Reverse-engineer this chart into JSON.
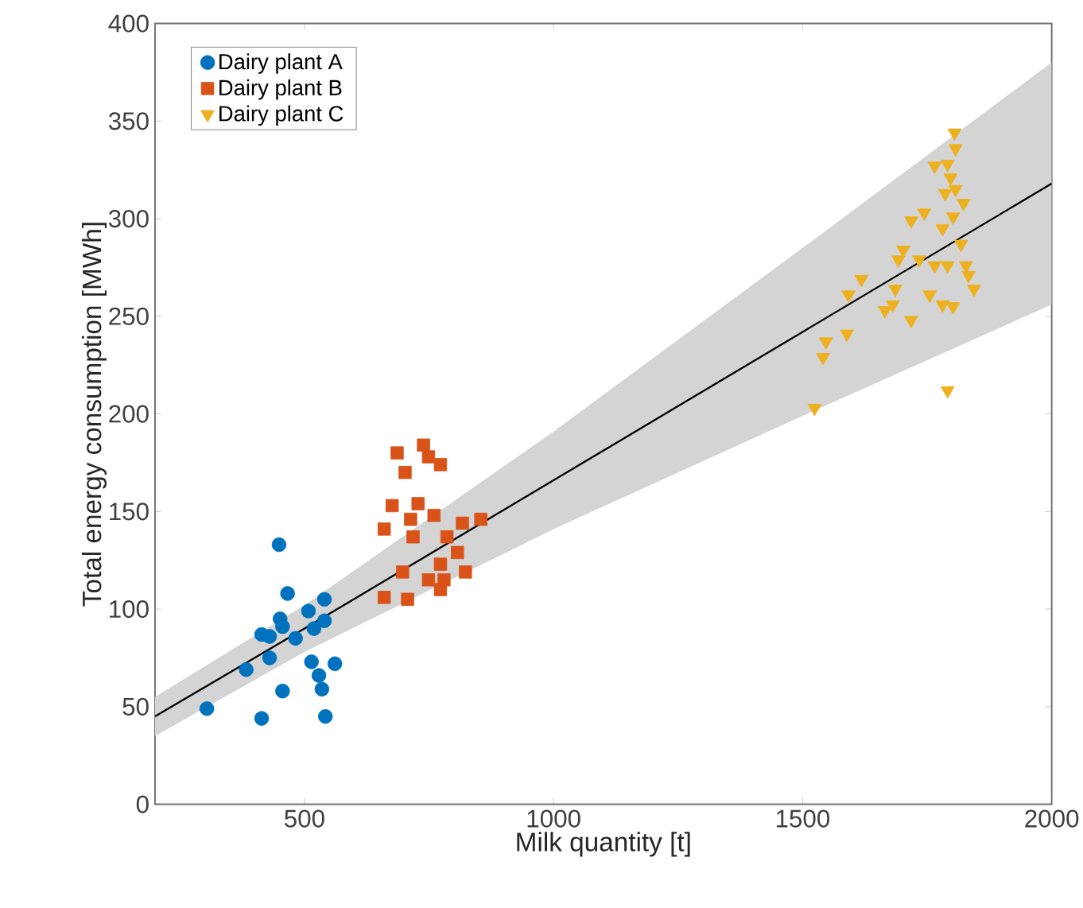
{
  "chart_data": {
    "type": "scatter",
    "xlabel": "Milk quantity [t]",
    "ylabel": "Total energy consumption [MWh]",
    "xlim": [
      200,
      2000
    ],
    "ylim": [
      0,
      400
    ],
    "xticks": [
      500,
      1000,
      1500,
      2000
    ],
    "yticks": [
      0,
      50,
      100,
      150,
      200,
      250,
      300,
      350,
      400
    ],
    "grid": false,
    "legend": "top left",
    "series": [
      {
        "name": "Dairy plant A",
        "color": "#0072bd",
        "marker": "circle",
        "x": [
          449,
          466,
          451,
          414,
          430,
          456,
          508,
          540,
          540,
          482,
          519,
          430,
          383,
          514,
          561,
          529,
          535,
          456,
          304,
          414,
          542
        ],
        "values": [
          133,
          108,
          95,
          87,
          86,
          91,
          99,
          105,
          94,
          85,
          90,
          75,
          69,
          73,
          72,
          66,
          59,
          58,
          49,
          44,
          45
        ]
      },
      {
        "name": "Dairy plant B",
        "color": "#d95319",
        "marker": "square",
        "x": [
          686,
          739,
          749,
          702,
          773,
          676,
          728,
          760,
          713,
          660,
          718,
          854,
          817,
          786,
          807,
          773,
          823,
          697,
          749,
          780,
          660,
          707,
          773
        ],
        "values": [
          180,
          184,
          178,
          170,
          174,
          153,
          154,
          148,
          146,
          141,
          137,
          146,
          144,
          137,
          129,
          123,
          119,
          119,
          115,
          115,
          106,
          105,
          110
        ]
      },
      {
        "name": "Dairy plant C",
        "color": "#edb120",
        "marker": "triangle",
        "x": [
          1805,
          1807,
          1765,
          1791,
          1797,
          1807,
          1786,
          1823,
          1744,
          1718,
          1802,
          1781,
          1818,
          1702,
          1692,
          1734,
          1765,
          1791,
          1828,
          1833,
          1844,
          1618,
          1592,
          1686,
          1665,
          1681,
          1718,
          1755,
          1781,
          1802,
          1589,
          1547,
          1541,
          1524,
          1791
        ],
        "values": [
          344,
          336,
          327,
          328,
          321,
          315,
          313,
          308,
          303,
          299,
          301,
          295,
          287,
          284,
          279,
          279,
          276,
          276,
          276,
          271,
          264,
          269,
          261,
          264,
          253,
          256,
          248,
          261,
          256,
          255,
          241,
          237,
          229,
          203,
          212
        ]
      },
      {
        "type": "line",
        "color": "#000000",
        "marker": "none",
        "x": [
          200,
          500,
          1000,
          1500,
          2000
        ],
        "values": [
          45,
          90,
          166,
          242,
          318
        ],
        "lower": [
          35,
          78,
          141,
          199,
          256
        ],
        "upper": [
          55,
          102,
          191,
          285,
          380
        ]
      }
    ]
  }
}
